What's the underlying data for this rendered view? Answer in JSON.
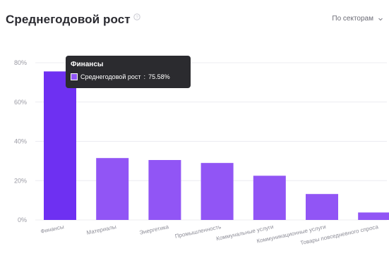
{
  "header": {
    "title": "Среднегодовой рост",
    "dropdown_label": "По секторам"
  },
  "icons": {
    "info": "info-circle-icon",
    "dropdown": "chevron-down-icon"
  },
  "colors": {
    "highlight_bar": "#6e30f2",
    "bar": "#9155f5",
    "grid": "#ececf1",
    "tooltip_bg": "#2b2b2f"
  },
  "tooltip": {
    "title": "Финансы",
    "series_label": "Среднегодовой рост",
    "value": "75.58%"
  },
  "chart_data": {
    "type": "bar",
    "categories": [
      "Финансы",
      "Материалы",
      "Энергетика",
      "Промышленность",
      "Коммунальные услуги",
      "Коммуникационные услуги",
      "Товары повседневного спроса"
    ],
    "series": [
      {
        "name": "Среднегодовой рост",
        "values": [
          75.58,
          31.5,
          30.5,
          29.0,
          22.5,
          13.2,
          3.8
        ]
      }
    ],
    "ylim": [
      0,
      80
    ],
    "yticks": [
      0,
      20,
      40,
      60,
      80
    ],
    "ytick_labels": [
      "0%",
      "20%",
      "40%",
      "60%",
      "80%"
    ],
    "grid": true,
    "highlighted_index": 0
  }
}
